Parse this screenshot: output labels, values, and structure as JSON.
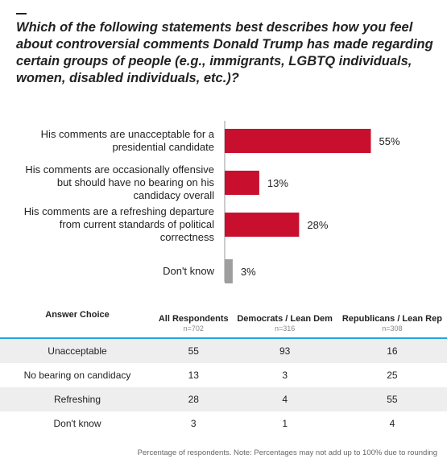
{
  "question": "Which of the following statements best describes how you feel about controversial comments Donald Trump has made regarding certain groups of people (e.g., immigrants, LGBTQ individuals, women, disabled individuals, etc.)?",
  "chart_data": {
    "type": "bar",
    "orientation": "horizontal",
    "categories": [
      [
        "His comments are unacceptable for a",
        "presidential candidate"
      ],
      [
        "His comments are occasionally offensive",
        "but should have no bearing on his",
        "candidacy overall"
      ],
      [
        "His comments are a refreshing departure",
        "from current standards of political",
        "correctness"
      ],
      [
        "Don't know"
      ]
    ],
    "values": [
      55,
      13,
      28,
      3
    ],
    "value_labels": [
      "55%",
      "13%",
      "28%",
      "3%"
    ],
    "colors": [
      "#c8102e",
      "#c8102e",
      "#c8102e",
      "#9e9e9e"
    ],
    "xlim": [
      0,
      100
    ]
  },
  "table": {
    "headers": [
      {
        "label": "Answer Choice",
        "n": ""
      },
      {
        "label": "All Respondents",
        "n": "n=702"
      },
      {
        "label": "Democrats / Lean Dem",
        "n": "n=316"
      },
      {
        "label": "Republicans / Lean Rep",
        "n": "n=308"
      }
    ],
    "rows": [
      [
        "Unacceptable",
        "55",
        "93",
        "16"
      ],
      [
        "No bearing on candidacy",
        "13",
        "3",
        "25"
      ],
      [
        "Refreshing",
        "28",
        "4",
        "55"
      ],
      [
        "Don't know",
        "3",
        "1",
        "4"
      ]
    ]
  },
  "footnote": "Percentage of respondents. Note: Percentages may not add up to 100% due to rounding",
  "colors": {
    "accent_bar": "#c8102e",
    "neutral_bar": "#9e9e9e",
    "rule": "#1ea6de"
  }
}
